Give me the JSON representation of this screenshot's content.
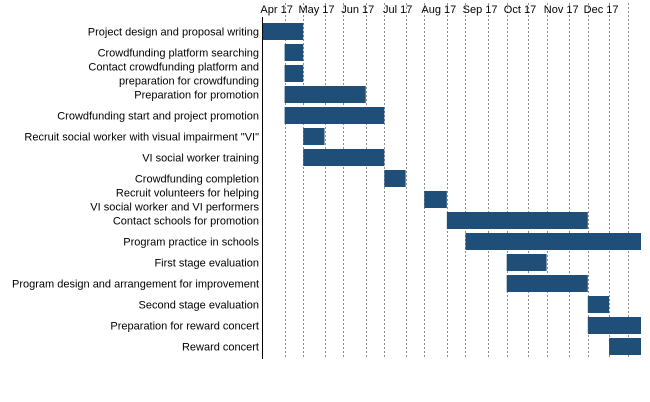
{
  "chart_data": {
    "type": "bar",
    "subtype": "gantt",
    "title": "",
    "xlabel": "",
    "ylabel": "",
    "grid": "vertical-dashed",
    "bar_color": "#1f4e79",
    "months": [
      "Apr 17",
      "May 17",
      "Jun 17",
      "Jul 17",
      "Aug 17",
      "Sep 17",
      "Oct 17",
      "Nov 17",
      "Dec 17"
    ],
    "x_range": [
      "2017-03-21",
      "2017-12-31"
    ],
    "tasks": [
      {
        "label": [
          "Project design and proposal writing"
        ],
        "start": "2017-03-21",
        "end": "2017-04-21"
      },
      {
        "label": [
          "Crowdfunding platform searching"
        ],
        "start": "2017-04-07",
        "end": "2017-04-21"
      },
      {
        "label": [
          "Contact crowdfunding platform and",
          "preparation for crowdfunding"
        ],
        "start": "2017-04-07",
        "end": "2017-04-21"
      },
      {
        "label": [
          "Preparation for promotion"
        ],
        "start": "2017-04-07",
        "end": "2017-06-07"
      },
      {
        "label": [
          "Crowdfunding start and project promotion"
        ],
        "start": "2017-04-07",
        "end": "2017-06-21"
      },
      {
        "label": [
          "Recruit social worker with visual impairment \"VI\""
        ],
        "start": "2017-04-21",
        "end": "2017-05-07"
      },
      {
        "label": [
          "VI social worker training"
        ],
        "start": "2017-04-21",
        "end": "2017-06-21"
      },
      {
        "label": [
          "Crowdfunding completion"
        ],
        "start": "2017-06-21",
        "end": "2017-07-07"
      },
      {
        "label": [
          "Recruit volunteers for helping",
          "VI social worker and VI performers"
        ],
        "start": "2017-07-21",
        "end": "2017-08-07"
      },
      {
        "label": [
          "Contact schools for promotion"
        ],
        "start": "2017-08-07",
        "end": "2017-11-21"
      },
      {
        "label": [
          "Program practice in schools"
        ],
        "start": "2017-08-21",
        "end": "2017-12-31"
      },
      {
        "label": [
          "First stage evaluation"
        ],
        "start": "2017-09-21",
        "end": "2017-10-21"
      },
      {
        "label": [
          "Program design and arrangement for improvement"
        ],
        "start": "2017-09-21",
        "end": "2017-11-21"
      },
      {
        "label": [
          "Second stage evaluation"
        ],
        "start": "2017-11-21",
        "end": "2017-12-07"
      },
      {
        "label": [
          "Preparation for reward concert"
        ],
        "start": "2017-11-21",
        "end": "2017-12-31"
      },
      {
        "label": [
          "Reward concert"
        ],
        "start": "2017-12-07",
        "end": "2017-12-31"
      }
    ]
  }
}
